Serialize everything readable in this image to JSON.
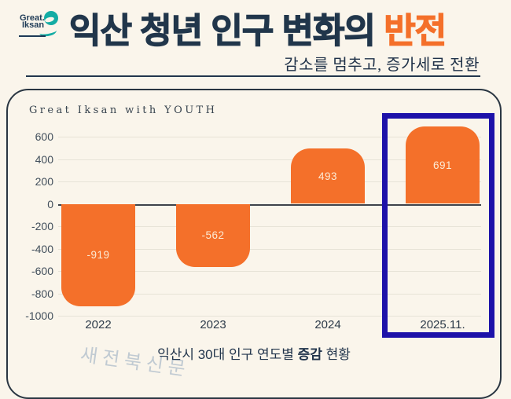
{
  "page": {
    "background": "#FAF5EB",
    "accent_orange": "#F4702A",
    "navy": "#21364B"
  },
  "logo": {
    "line1": "Great.",
    "line2": "Iksan"
  },
  "header": {
    "title_main": "익산 청년 인구 변화의 ",
    "title_accent": "반전",
    "subtitle": "감소를 멈추고, 증가세로 전환"
  },
  "chart_data": {
    "type": "bar",
    "header": "Great Iksan with YOUTH",
    "categories": [
      "2022",
      "2023",
      "2024",
      "2025.11."
    ],
    "values": [
      -919,
      -562,
      493,
      691
    ],
    "yticks": [
      600,
      400,
      200,
      0,
      -200,
      -400,
      -600,
      -800,
      -1000
    ],
    "ylim": [
      -1050,
      700
    ],
    "grid": true,
    "legend": false,
    "bar_color": "#F4702A",
    "bar_label_color": "#FCEBD5",
    "grid_color": "#E7E3D7",
    "zero_line_color": "#3E434B",
    "highlight_index": 3,
    "highlight_color": "#1D12A9",
    "title": "익산시 30대 인구 연도별 증감 현황"
  },
  "footer": {
    "caption_pre": "익산시 30대 인구 연도별 ",
    "caption_bold": "증감",
    "caption_post": " 현황",
    "watermark": "새전북신문"
  }
}
